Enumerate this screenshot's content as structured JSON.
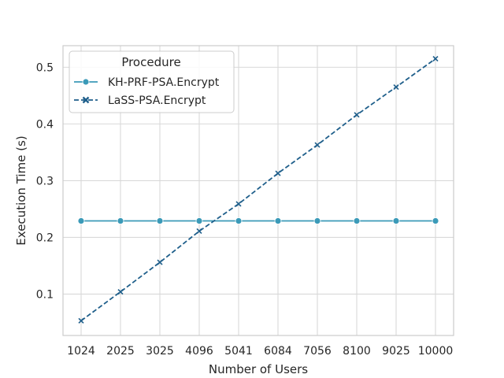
{
  "chart_data": {
    "type": "line",
    "xlabel": "Number of Users",
    "ylabel": "Execution Time (s)",
    "x": [
      1024,
      2025,
      3025,
      4096,
      5041,
      6084,
      7056,
      8100,
      9025,
      10000
    ],
    "x_tick_labels": [
      "1024",
      "2025",
      "3025",
      "4096",
      "5041",
      "6084",
      "7056",
      "8100",
      "9025",
      "10000"
    ],
    "ylim": [
      0.027,
      0.538
    ],
    "y_ticks": [
      0.1,
      0.2,
      0.3,
      0.4,
      0.5
    ],
    "y_tick_labels": [
      "0.1",
      "0.2",
      "0.3",
      "0.4",
      "0.5"
    ],
    "grid": true,
    "legend": {
      "title": "Procedure",
      "placement": "top-left"
    },
    "series": [
      {
        "name": "KH-PRF-PSA.Encrypt",
        "color": "#3b9ab8",
        "line_style": "solid",
        "marker": "circle",
        "values": [
          0.229,
          0.229,
          0.229,
          0.229,
          0.229,
          0.229,
          0.229,
          0.229,
          0.229,
          0.229
        ]
      },
      {
        "name": "LaSS-PSA.Encrypt",
        "color": "#1f5f8b",
        "line_style": "dashed",
        "marker": "x",
        "values": [
          0.053,
          0.104,
          0.156,
          0.211,
          0.259,
          0.313,
          0.363,
          0.416,
          0.465,
          0.515
        ]
      }
    ]
  }
}
